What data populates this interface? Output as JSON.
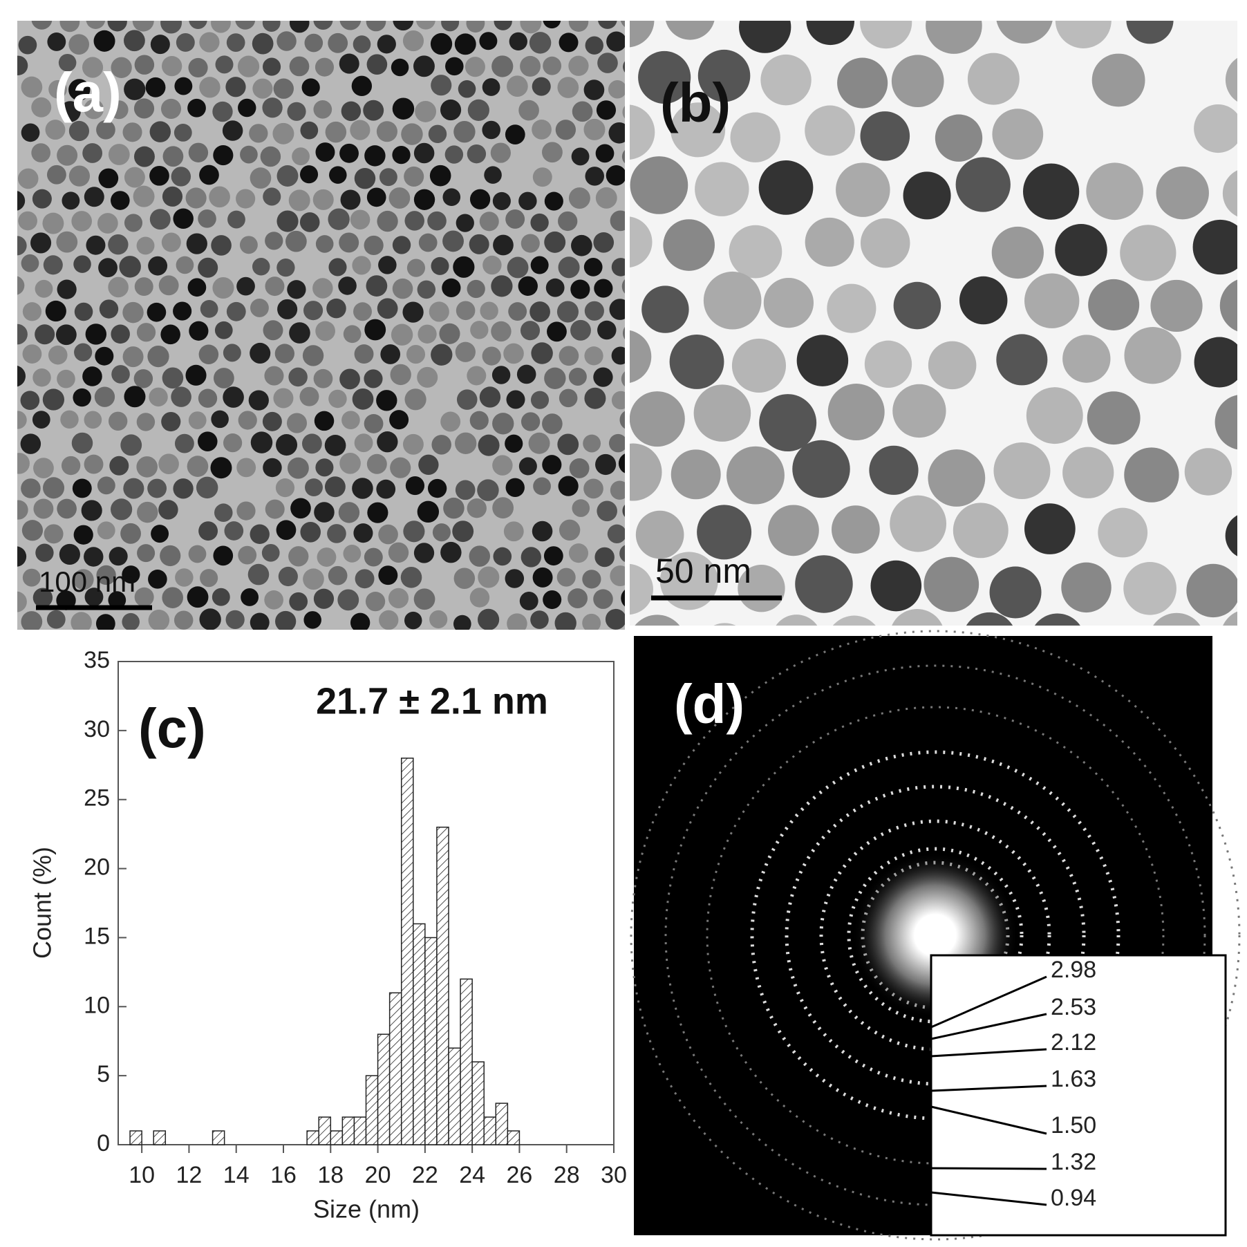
{
  "panels": {
    "a": {
      "label": "(a)",
      "scale_bar": "100 nm"
    },
    "b": {
      "label": "(b)",
      "scale_bar": "50 nm"
    },
    "d": {
      "label": "(d)",
      "d_spacings": [
        "2.98",
        "2.53",
        "2.12",
        "1.63",
        "1.50",
        "1.32",
        "0.94"
      ]
    }
  },
  "chart_data": {
    "type": "histogram",
    "panel_label": "(c)",
    "annotation": "21.7 ± 2.1 nm",
    "x_label": "Size (nm)",
    "y_label": "Count (%)",
    "bins": [
      9.5,
      10,
      10.5,
      11,
      11.5,
      12,
      12.5,
      13,
      13.5,
      14,
      14.5,
      15,
      15.5,
      16,
      16.5,
      17,
      17.5,
      18,
      18.5,
      19,
      19.5,
      20,
      20.5,
      21,
      21.5,
      22,
      22.5,
      23,
      23.5,
      24,
      24.5,
      25,
      25.5,
      26
    ],
    "values": [
      1,
      0,
      1,
      0,
      0,
      0,
      0,
      1,
      0,
      0,
      0,
      0,
      0,
      0,
      0,
      1,
      2,
      1,
      2,
      2,
      5,
      8,
      11,
      28,
      16,
      15,
      23,
      7,
      12,
      6,
      2,
      3,
      1
    ],
    "xlim": [
      9,
      30
    ],
    "xticks": [
      10,
      12,
      14,
      16,
      18,
      20,
      22,
      24,
      26,
      28,
      30
    ],
    "ylim": [
      0,
      35
    ],
    "yticks": [
      0,
      5,
      10,
      15,
      20,
      25,
      30,
      35
    ],
    "color": "#222222",
    "hatch": true
  }
}
